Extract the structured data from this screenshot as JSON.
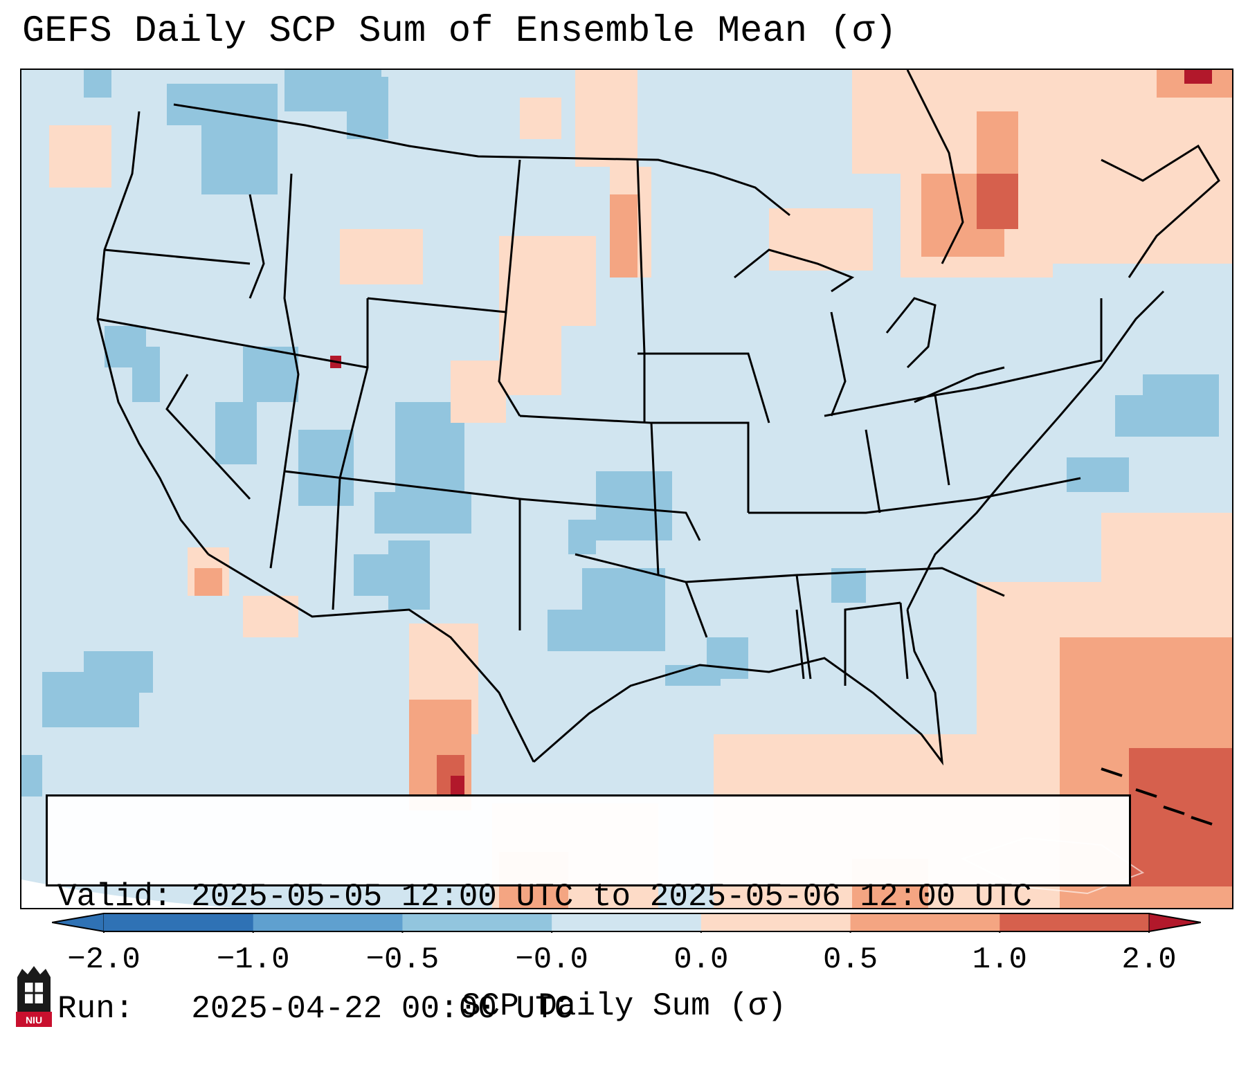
{
  "title": "GEFS Daily SCP Sum of Ensemble Mean (σ)",
  "valid_line": "Valid: 2025-05-05 12:00 UTC to 2025-05-06 12:00 UTC",
  "run_line": "Run:   2025-04-22 00:00 UTC",
  "colorbar": {
    "label": "SCP Daily Sum (σ)",
    "ticks": [
      "−2.0",
      "−1.0",
      "−0.5",
      "−0.0",
      "0.0",
      "0.5",
      "1.0",
      "2.0"
    ],
    "colors": [
      "#2f72b5",
      "#5fa0cf",
      "#92c5de",
      "#d1e5f0",
      "#fddbc7",
      "#f4a582",
      "#d6604d",
      "#b2182b"
    ]
  },
  "map": {
    "background_color": "#d1e5f0",
    "ocean_color": "#d1e5f0",
    "border_color": "#000000"
  },
  "logo": {
    "text": "NIU"
  }
}
